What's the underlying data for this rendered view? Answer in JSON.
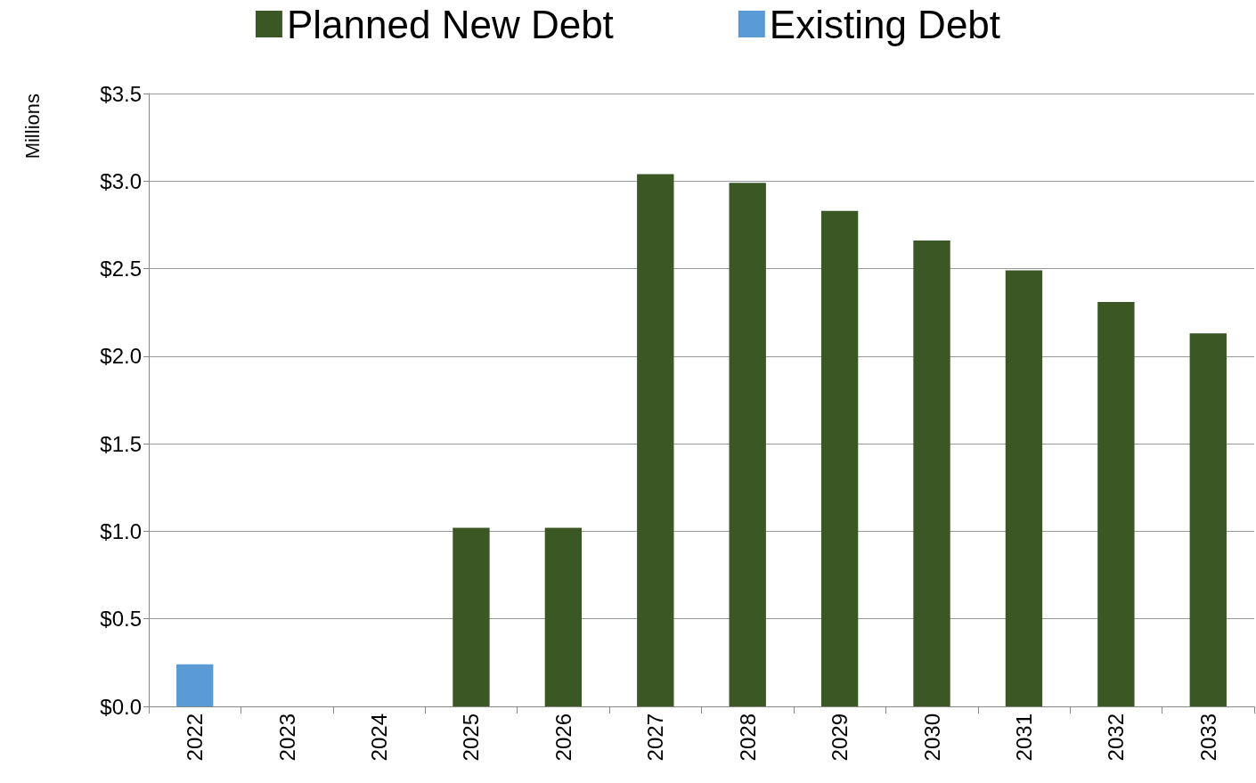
{
  "chart_data": {
    "type": "bar",
    "ylabel": "Millions",
    "stacked": true,
    "legend": "top",
    "grid": "y",
    "categories": [
      "2022",
      "2023",
      "2024",
      "2025",
      "2026",
      "2027",
      "2028",
      "2029",
      "2030",
      "2031",
      "2032",
      "2033"
    ],
    "series": [
      {
        "name": "Planned New Debt",
        "color": "#3a5724",
        "values": [
          null,
          null,
          null,
          1.02,
          1.02,
          3.04,
          2.99,
          2.83,
          2.66,
          2.49,
          2.31,
          2.13
        ]
      },
      {
        "name": "Existing Debt",
        "color": "#5b9bd5",
        "values": [
          0.24,
          null,
          null,
          null,
          null,
          null,
          null,
          null,
          null,
          null,
          null,
          null
        ]
      }
    ],
    "ylim": [
      0,
      3.5
    ],
    "yticks": [
      {
        "value": 0,
        "label": "$0.0"
      },
      {
        "value": 0.5,
        "label": "$0.5"
      },
      {
        "value": 1,
        "label": "$1.0"
      },
      {
        "value": 1.5,
        "label": "$1.5"
      },
      {
        "value": 2,
        "label": "$2.0"
      },
      {
        "value": 2.5,
        "label": "$2.5"
      },
      {
        "value": 3,
        "label": "$3.0"
      },
      {
        "value": 3.5,
        "label": "$3.5"
      }
    ]
  }
}
